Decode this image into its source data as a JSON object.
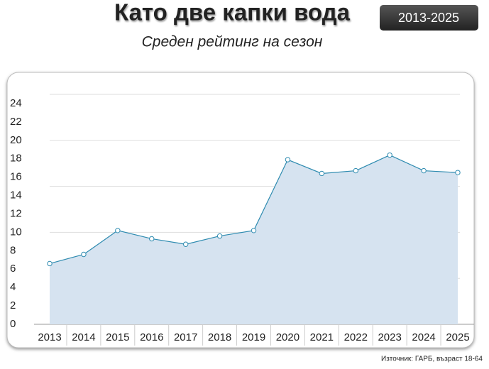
{
  "chart_data": {
    "type": "area",
    "title": "Като две капки вода",
    "subtitle": "Среден рейтинг на сезон",
    "badge": "2013-2025",
    "source": "Източник: ГАРБ, възраст 18-64",
    "categories": [
      "2013",
      "2014",
      "2015",
      "2016",
      "2017",
      "2018",
      "2019",
      "2020",
      "2021",
      "2022",
      "2023",
      "2024",
      "2025"
    ],
    "series": [
      {
        "color": "#2e8bb0",
        "fill": "#d6e3f0",
        "values": [
          6.6,
          7.6,
          10.2,
          9.3,
          8.7,
          9.6,
          10.2,
          17.9,
          16.4,
          16.7,
          18.4,
          16.7,
          16.5
        ]
      }
    ],
    "ylim": [
      0,
      25
    ],
    "yticks": [
      0,
      2,
      4,
      6,
      8,
      10,
      12,
      14,
      16,
      18,
      20,
      22,
      24
    ],
    "ygrid": [
      0,
      5,
      10,
      15,
      20,
      25
    ],
    "grid": true
  }
}
